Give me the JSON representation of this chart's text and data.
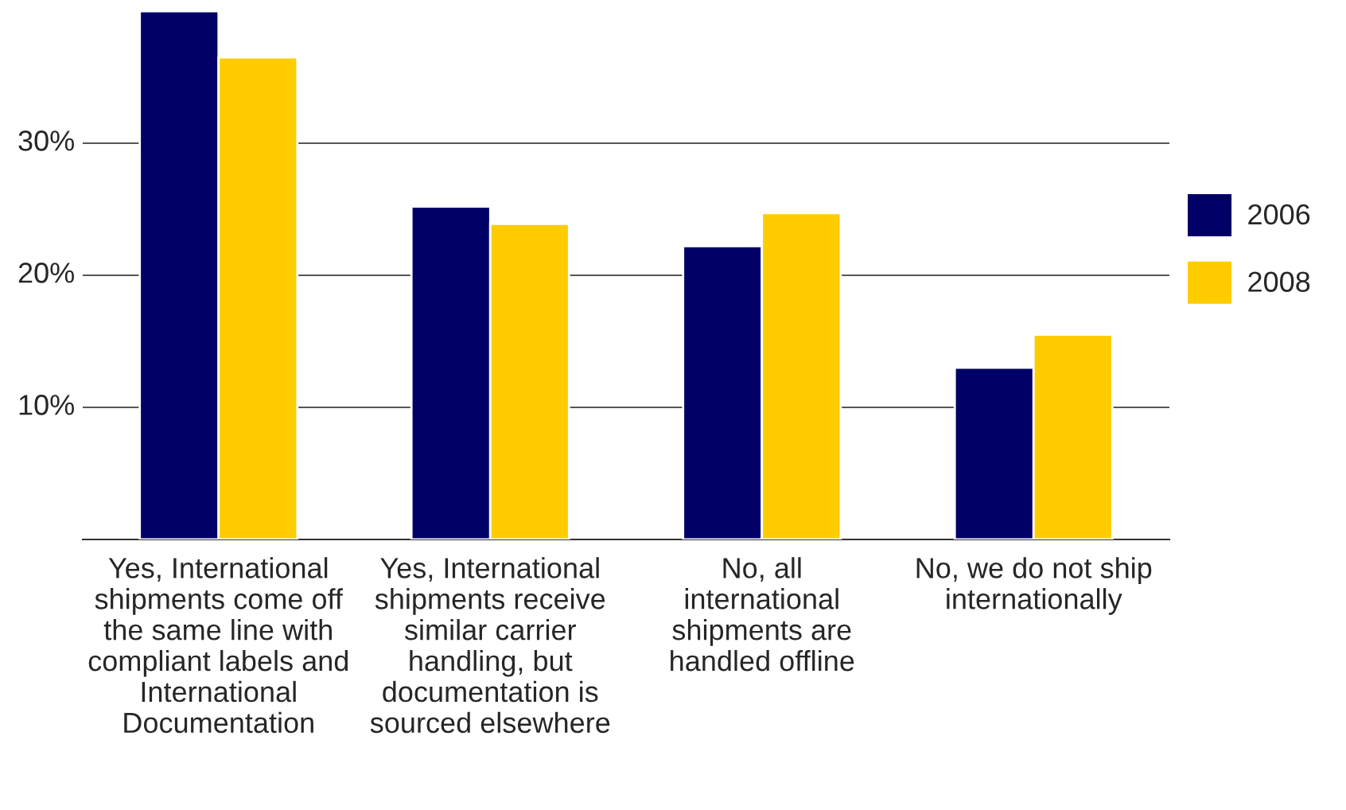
{
  "chart_data": {
    "type": "bar",
    "categories": [
      "Yes, International\nshipments come off\nthe same line with\ncompliant labels and\nInternational\nDocumentation",
      "Yes, International\nshipments receive\nsimilar carrier\nhandling, but\ndocumentation is\nsourced elsewhere",
      "No, all\ninternational\nshipments are\nhandled offline",
      "No, we do not ship\ninternationally"
    ],
    "series": [
      {
        "name": "2006",
        "color": "#000066",
        "values": [
          40,
          25.2,
          22.2,
          13
        ]
      },
      {
        "name": "2008",
        "color": "#ffcc00",
        "values": [
          36.5,
          23.9,
          24.7,
          15.5
        ]
      }
    ],
    "ylim": [
      0,
      40
    ],
    "yticks": [
      {
        "value": 10,
        "label": "10%"
      },
      {
        "value": 20,
        "label": "20%"
      },
      {
        "value": 30,
        "label": "30%"
      }
    ],
    "grid": "y",
    "legend": "right"
  }
}
